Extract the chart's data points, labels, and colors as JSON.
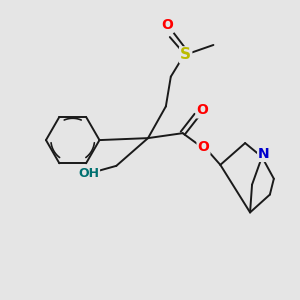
{
  "bg_color": "#e5e5e5",
  "bond_color": "#1a1a1a",
  "oxygen_color": "#ff0000",
  "nitrogen_color": "#0000cc",
  "sulfur_color": "#bbbb00",
  "hydroxyl_color": "#007070",
  "bond_width": 1.4,
  "fig_width": 3.0,
  "fig_height": 3.0,
  "dpi": 100,
  "xlim": [
    0,
    300
  ],
  "ylim": [
    0,
    300
  ]
}
